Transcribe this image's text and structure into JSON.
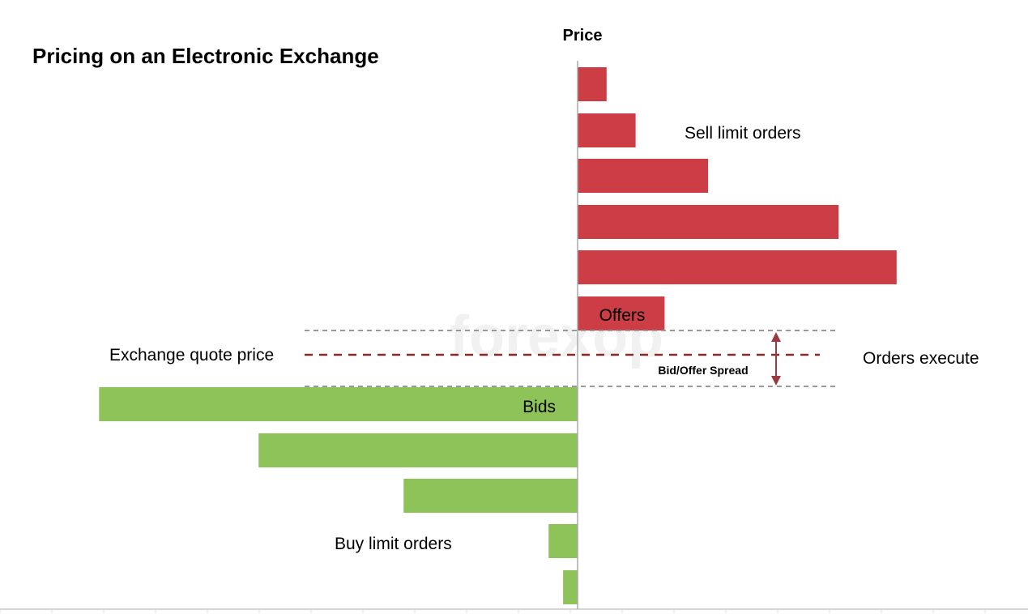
{
  "chart_data": {
    "type": "bar",
    "orientation": "horizontal",
    "title": "Pricing on an Electronic Exchange",
    "ylabel": "Price",
    "watermark": "forexop",
    "sell_orders": {
      "name": "Sell limit orders",
      "color": "#cc3d46",
      "values": [
        1,
        2,
        4.5,
        9,
        11,
        3
      ],
      "inner_label": "Offers"
    },
    "buy_orders": {
      "name": "Buy limit orders",
      "color": "#8ec35a",
      "values": [
        16.5,
        11,
        6,
        1,
        0.5
      ],
      "inner_label": "Bids"
    },
    "annotations": {
      "quote_price": "Exchange quote price",
      "orders_execute": "Orders execute",
      "spread": "Bid/Offer Spread"
    },
    "colors": {
      "quote_line": "#8b2a2a",
      "level_line": "#999999",
      "arrow": "#9b3a40",
      "axis": "#aaaaaa"
    }
  }
}
